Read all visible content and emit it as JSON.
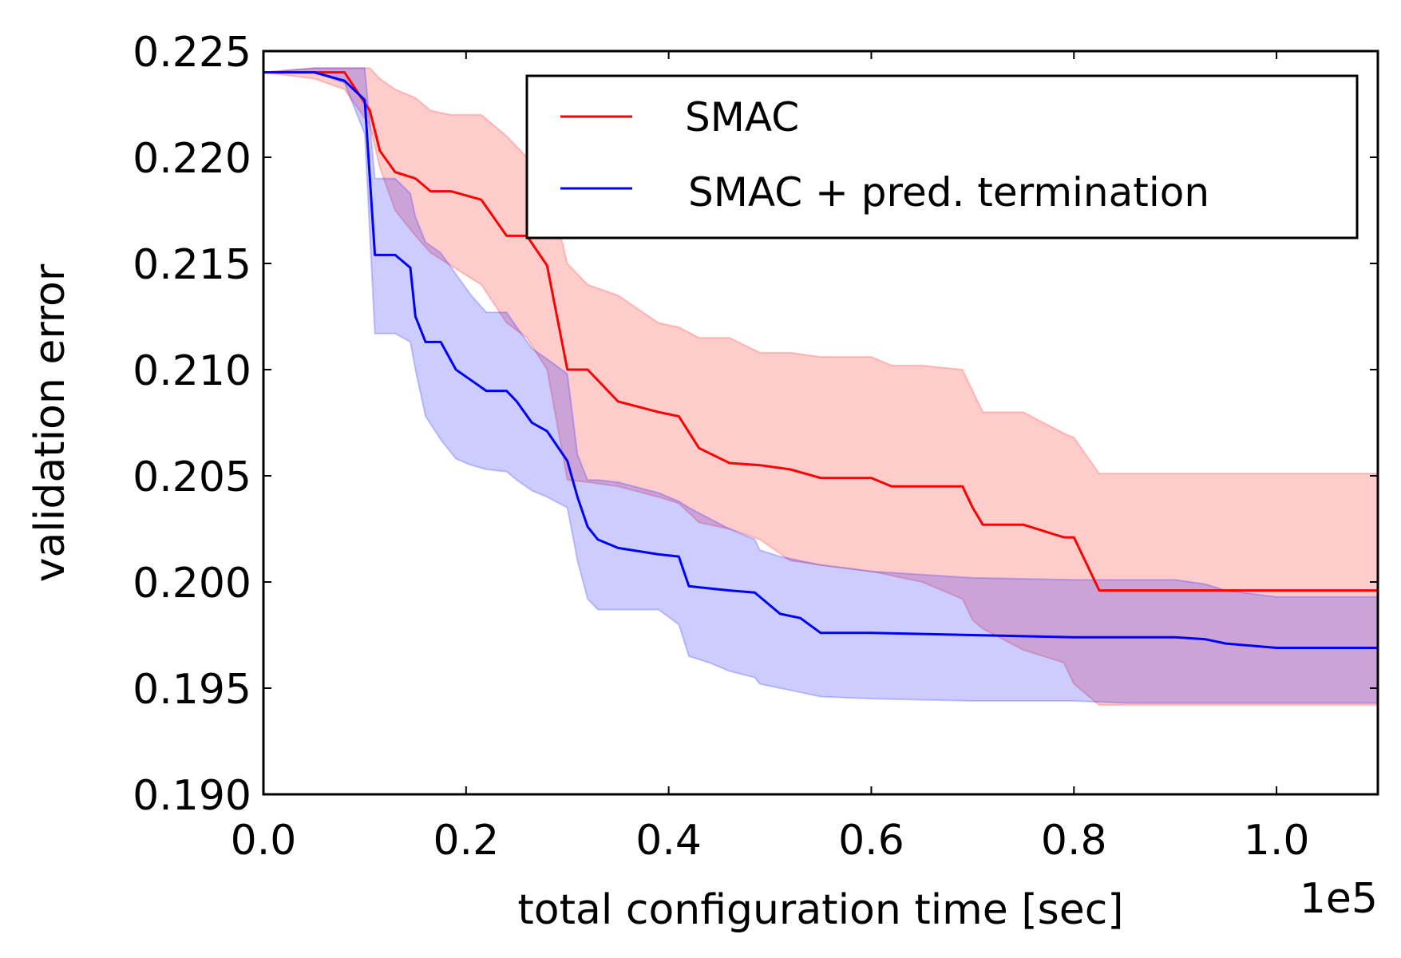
{
  "chart_data": {
    "type": "line",
    "xlabel": "total configuration time [sec]",
    "ylabel": "validation error",
    "x_offset_text": "1e5",
    "xlim": [
      0,
      110000
    ],
    "ylim": [
      0.19,
      0.225
    ],
    "x_ticks": [
      0,
      20000,
      40000,
      60000,
      80000,
      100000
    ],
    "x_tick_labels": [
      "0.0",
      "0.2",
      "0.4",
      "0.6",
      "0.8",
      "1.0"
    ],
    "y_ticks": [
      0.19,
      0.195,
      0.2,
      0.205,
      0.21,
      0.215,
      0.22,
      0.225
    ],
    "y_tick_labels": [
      "0.190",
      "0.195",
      "0.200",
      "0.205",
      "0.210",
      "0.215",
      "0.220",
      "0.225"
    ],
    "grid": false,
    "legend_position": "top-right",
    "series": [
      {
        "name": "SMAC",
        "color": "#ff0000",
        "band_color": "#ff0000",
        "x": [
          0,
          5000,
          8000,
          10500,
          11500,
          13000,
          15000,
          16500,
          18500,
          21500,
          24000,
          26000,
          28000,
          30000,
          32000,
          35000,
          39000,
          41000,
          43000,
          46000,
          49000,
          52000,
          55000,
          60000,
          62000,
          65000,
          69000,
          70000,
          71000,
          75000,
          79000,
          80000,
          82500,
          90000,
          95000,
          100000,
          110000
        ],
        "values": [
          0.224,
          0.224,
          0.224,
          0.2222,
          0.2203,
          0.2193,
          0.219,
          0.2184,
          0.2184,
          0.218,
          0.2163,
          0.2163,
          0.2149,
          0.21,
          0.21,
          0.2085,
          0.208,
          0.2078,
          0.2063,
          0.2056,
          0.2055,
          0.2053,
          0.2049,
          0.2049,
          0.2045,
          0.2045,
          0.2045,
          0.2035,
          0.2027,
          0.2027,
          0.2021,
          0.2021,
          0.1996,
          0.1996,
          0.1996,
          0.1996,
          0.1996
        ],
        "upper": [
          0.224,
          0.2242,
          0.2242,
          0.2242,
          0.2237,
          0.2232,
          0.2228,
          0.2222,
          0.222,
          0.222,
          0.221,
          0.22,
          0.219,
          0.215,
          0.214,
          0.2135,
          0.2122,
          0.212,
          0.2115,
          0.2115,
          0.2108,
          0.2108,
          0.2106,
          0.2106,
          0.2102,
          0.2102,
          0.21,
          0.209,
          0.208,
          0.208,
          0.207,
          0.2068,
          0.2051,
          0.2051,
          0.2051,
          0.2051,
          0.2051
        ],
        "lower": [
          0.224,
          0.2237,
          0.2232,
          0.2215,
          0.2195,
          0.2175,
          0.2163,
          0.2155,
          0.2149,
          0.214,
          0.2122,
          0.2115,
          0.21,
          0.2048,
          0.2047,
          0.2045,
          0.204,
          0.2037,
          0.2028,
          0.2025,
          0.202,
          0.201,
          0.2008,
          0.2005,
          0.2003,
          0.2,
          0.1992,
          0.1982,
          0.1978,
          0.1968,
          0.1962,
          0.1952,
          0.1942,
          0.1942,
          0.1942,
          0.1942,
          0.1942
        ]
      },
      {
        "name": "SMAC + pred. termination",
        "color": "#0000ff",
        "band_color": "#0000ff",
        "x": [
          0,
          5000,
          8000,
          10000,
          11000,
          13000,
          14500,
          15000,
          16000,
          17500,
          19000,
          20500,
          22000,
          24000,
          25000,
          26500,
          28000,
          30000,
          31000,
          32000,
          33000,
          35000,
          39000,
          41000,
          42000,
          44000,
          46000,
          48500,
          49000,
          51000,
          53000,
          55000,
          60000,
          70000,
          80000,
          85000,
          90000,
          93000,
          95000,
          100000,
          110000
        ],
        "values": [
          0.224,
          0.224,
          0.2236,
          0.2227,
          0.2154,
          0.2154,
          0.2148,
          0.2125,
          0.2113,
          0.2113,
          0.21,
          0.2095,
          0.209,
          0.209,
          0.2085,
          0.2075,
          0.2071,
          0.2057,
          0.204,
          0.2026,
          0.202,
          0.2016,
          0.2013,
          0.2012,
          0.1998,
          0.1997,
          0.1996,
          0.1995,
          0.1993,
          0.1985,
          0.1983,
          0.1976,
          0.1976,
          0.1975,
          0.1974,
          0.1974,
          0.1974,
          0.1973,
          0.1971,
          0.1969,
          0.1969
        ],
        "upper": [
          0.224,
          0.2242,
          0.2242,
          0.2242,
          0.219,
          0.219,
          0.2183,
          0.2172,
          0.216,
          0.2155,
          0.2145,
          0.2135,
          0.2127,
          0.2127,
          0.212,
          0.211,
          0.2105,
          0.2098,
          0.206,
          0.2048,
          0.2048,
          0.2047,
          0.2042,
          0.2038,
          0.2035,
          0.203,
          0.2025,
          0.202,
          0.2015,
          0.2012,
          0.201,
          0.2008,
          0.2005,
          0.2002,
          0.2001,
          0.2001,
          0.2001,
          0.1999,
          0.1996,
          0.1993,
          0.1993
        ],
        "lower": [
          0.224,
          0.224,
          0.2235,
          0.2211,
          0.2117,
          0.2117,
          0.2113,
          0.21,
          0.2078,
          0.2067,
          0.2058,
          0.2055,
          0.2053,
          0.2052,
          0.2048,
          0.2043,
          0.204,
          0.2035,
          0.201,
          0.1992,
          0.1987,
          0.1987,
          0.1987,
          0.198,
          0.1965,
          0.1962,
          0.1958,
          0.1955,
          0.1952,
          0.195,
          0.1948,
          0.1946,
          0.1945,
          0.1944,
          0.1944,
          0.1943,
          0.1943,
          0.1943,
          0.1943,
          0.1943,
          0.1943
        ]
      }
    ]
  }
}
